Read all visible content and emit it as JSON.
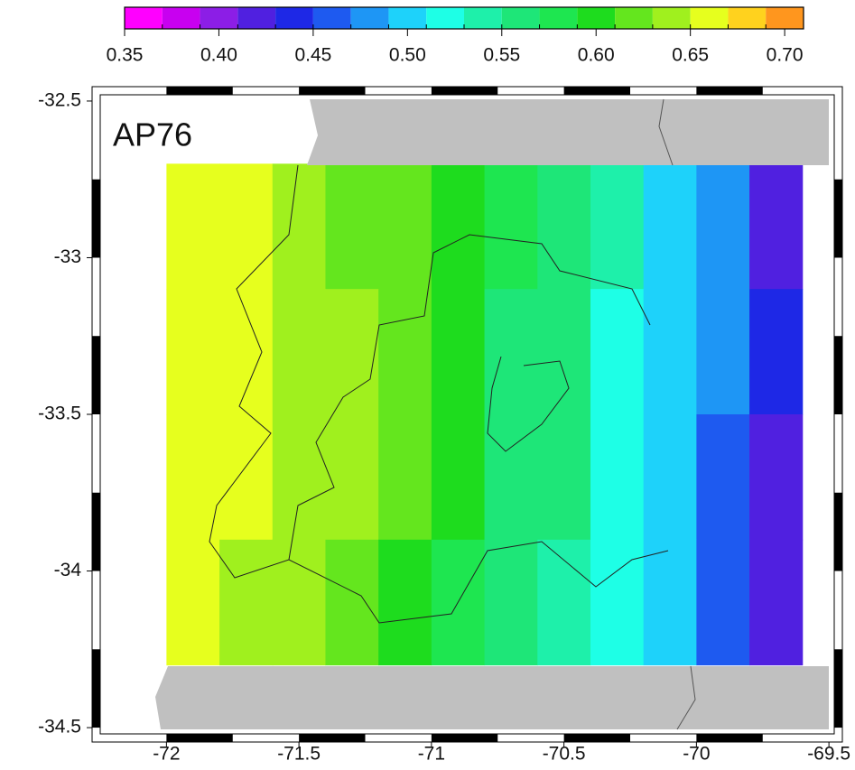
{
  "chart_data": {
    "type": "map",
    "title": "AP76",
    "xlim": [
      -72.25,
      -69.48
    ],
    "ylim": [
      -32.48,
      -34.52
    ],
    "xticks": [
      -72,
      -71.5,
      -71,
      -70.5,
      -70,
      -69.5
    ],
    "yticks": [
      -32.5,
      -33,
      -33.5,
      -34,
      -34.5
    ],
    "colorbar": {
      "lim": [
        0.35,
        0.71
      ],
      "ticks": [
        0.35,
        {
          "value": 0.4,
          "label": "0.40"
        },
        0.45,
        {
          "value": 0.5,
          "label": "0.50"
        },
        0.55,
        {
          "value": 0.6,
          "label": "0.60"
        },
        0.65,
        {
          "value": 0.7,
          "label": "0.70"
        }
      ],
      "colors": [
        "#ff00ff",
        "#c800f0",
        "#8c1ee6",
        "#5020e0",
        "#1e28e6",
        "#1e5af0",
        "#1e96f5",
        "#1ed2fa",
        "#1effe6",
        "#1ef0aa",
        "#1ee678",
        "#1ee650",
        "#1edc1e",
        "#64e61e",
        "#a0f01e",
        "#e6ff1e",
        "#ffd21e",
        "#ff961e"
      ]
    },
    "field": {
      "lon_edges": [
        -72,
        -71.8,
        -71.6,
        -71.4,
        -71.2,
        -71,
        -70.8,
        -70.6,
        -70.4,
        -70.2,
        -70,
        -69.8,
        -69.6
      ],
      "lat_edges": [
        -32.7,
        -33.1,
        -33.5,
        -33.9,
        -34.3
      ],
      "values": [
        [
          0.66,
          0.65,
          0.63,
          0.62,
          0.61,
          0.6,
          0.58,
          0.56,
          0.53,
          0.5,
          0.47,
          0.42
        ],
        [
          0.66,
          0.65,
          0.64,
          0.63,
          0.61,
          0.59,
          0.57,
          0.55,
          0.52,
          0.5,
          0.47,
          0.43
        ],
        [
          0.66,
          0.65,
          0.64,
          0.63,
          0.61,
          0.59,
          0.57,
          0.55,
          0.52,
          0.5,
          0.46,
          0.41
        ],
        [
          0.65,
          0.64,
          0.63,
          0.61,
          0.6,
          0.58,
          0.56,
          0.54,
          0.52,
          0.49,
          0.46,
          0.41
        ]
      ]
    }
  }
}
